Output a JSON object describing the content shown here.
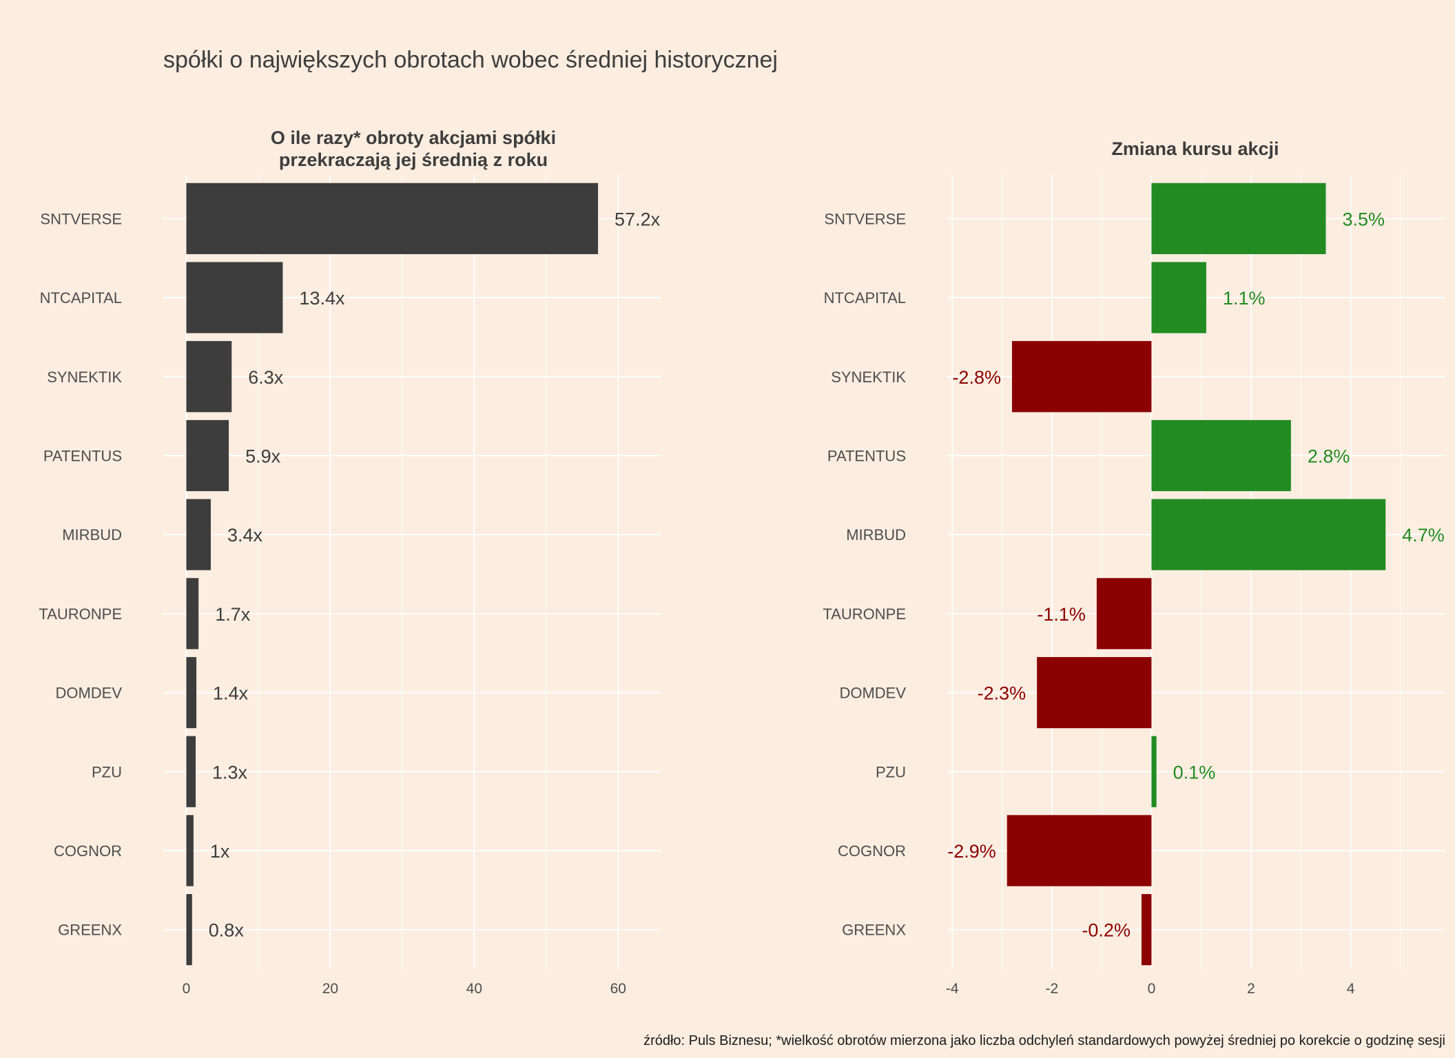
{
  "title": "spółki o największych obrotach wobec średniej historycznej",
  "caption": "źródło: Puls Biznesu; *wielkość obrotów mierzona jako liczba odchyleń standardowych powyżej średniej po korekcie o godzinę sesji",
  "colors": {
    "background": "#fbede0",
    "bar_dark": "#3d3d3d",
    "positive": "#228b22",
    "negative": "#8b0000"
  },
  "chart_data": [
    {
      "type": "bar",
      "orientation": "horizontal",
      "title_lines": [
        "O ile razy* obroty akcjami spółki",
        "przekraczają jej średnią z roku"
      ],
      "categories": [
        "SNTVERSE",
        "NTCAPITAL",
        "SYNEKTIK",
        "PATENTUS",
        "MIRBUD",
        "TAURONPE",
        "DOMDEV",
        "PZU",
        "COGNOR",
        "GREENX"
      ],
      "values": [
        57.2,
        13.4,
        6.3,
        5.9,
        3.4,
        1.7,
        1.4,
        1.3,
        1.0,
        0.8
      ],
      "labels": [
        "57.2x",
        "13.4x",
        "6.3x",
        "5.9x",
        "3.4x",
        "1.7x",
        "1.4x",
        "1.3x",
        "1x",
        "0.8x"
      ],
      "xlim": [
        -3.2,
        66
      ],
      "xticks": [
        0,
        20,
        40,
        60
      ],
      "xtick_labels": [
        "0",
        "20",
        "40",
        "60"
      ],
      "minor_ticks": [
        10,
        30,
        50
      ],
      "grid": true
    },
    {
      "type": "bar",
      "orientation": "horizontal",
      "title_lines": [
        "Zmiana kursu akcji"
      ],
      "categories": [
        "SNTVERSE",
        "NTCAPITAL",
        "SYNEKTIK",
        "PATENTUS",
        "MIRBUD",
        "TAURONPE",
        "DOMDEV",
        "PZU",
        "COGNOR",
        "GREENX"
      ],
      "values": [
        3.5,
        1.1,
        -2.8,
        2.8,
        4.7,
        -1.1,
        -2.3,
        0.1,
        -2.9,
        -0.2
      ],
      "labels": [
        "3.5%",
        "1.1%",
        "-2.8%",
        "2.8%",
        "4.7%",
        "-1.1%",
        "-2.3%",
        "0.1%",
        "-2.9%",
        "-0.2%"
      ],
      "xlim": [
        -4.1,
        5.9
      ],
      "xticks": [
        -4,
        -2,
        0,
        2,
        4
      ],
      "xtick_labels": [
        "-4",
        "-2",
        "0",
        "2",
        "4"
      ],
      "minor_ticks": [
        -3,
        -1,
        1,
        3,
        5
      ],
      "grid": true
    }
  ]
}
